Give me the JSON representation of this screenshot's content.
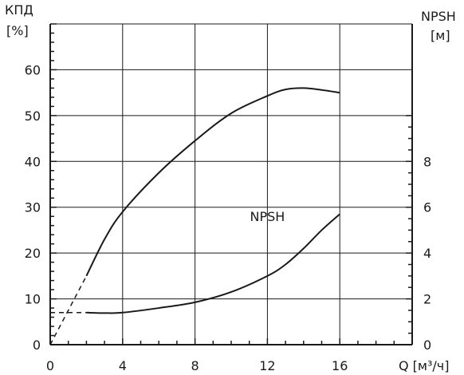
{
  "chart_data": {
    "type": "line",
    "left_axis_label_line1": "КПД",
    "left_axis_label_line2": "[%]",
    "right_axis_label_line1": "NPSH",
    "right_axis_label_line2": "[м]",
    "x_axis_label": "Q [м³/ч]",
    "x_ticks": [
      "0",
      "4",
      "8",
      "12",
      "16"
    ],
    "left_ticks": [
      "0",
      "10",
      "20",
      "30",
      "40",
      "50",
      "60"
    ],
    "right_ticks": [
      "0",
      "2",
      "4",
      "6",
      "8"
    ],
    "xlim": [
      0,
      20
    ],
    "ylim_left": [
      0,
      70
    ],
    "ylim_right": [
      0,
      14
    ],
    "grid": true,
    "series": [
      {
        "name": "",
        "axis": "left",
        "x": [
          2,
          3,
          4,
          6,
          8,
          10,
          12,
          13,
          14,
          15,
          16
        ],
        "y": [
          15,
          23,
          29,
          37.5,
          44.5,
          50.5,
          54.3,
          55.7,
          56,
          55.6,
          55
        ],
        "dashed_extension": {
          "x": [
            0,
            2
          ],
          "y": [
            0,
            15
          ]
        }
      },
      {
        "name": "NPSH",
        "axis": "right",
        "x": [
          2,
          3,
          4,
          6,
          8,
          10,
          12,
          13,
          14,
          15,
          16
        ],
        "y": [
          1.4,
          1.38,
          1.4,
          1.6,
          1.85,
          2.3,
          3,
          3.5,
          4.2,
          5,
          5.7
        ],
        "dashed_extension": {
          "x": [
            0,
            2
          ],
          "y": [
            1.4,
            1.4
          ]
        }
      }
    ],
    "annotations": [
      {
        "text": "NPSH",
        "x": 12,
        "y": 27
      }
    ]
  }
}
